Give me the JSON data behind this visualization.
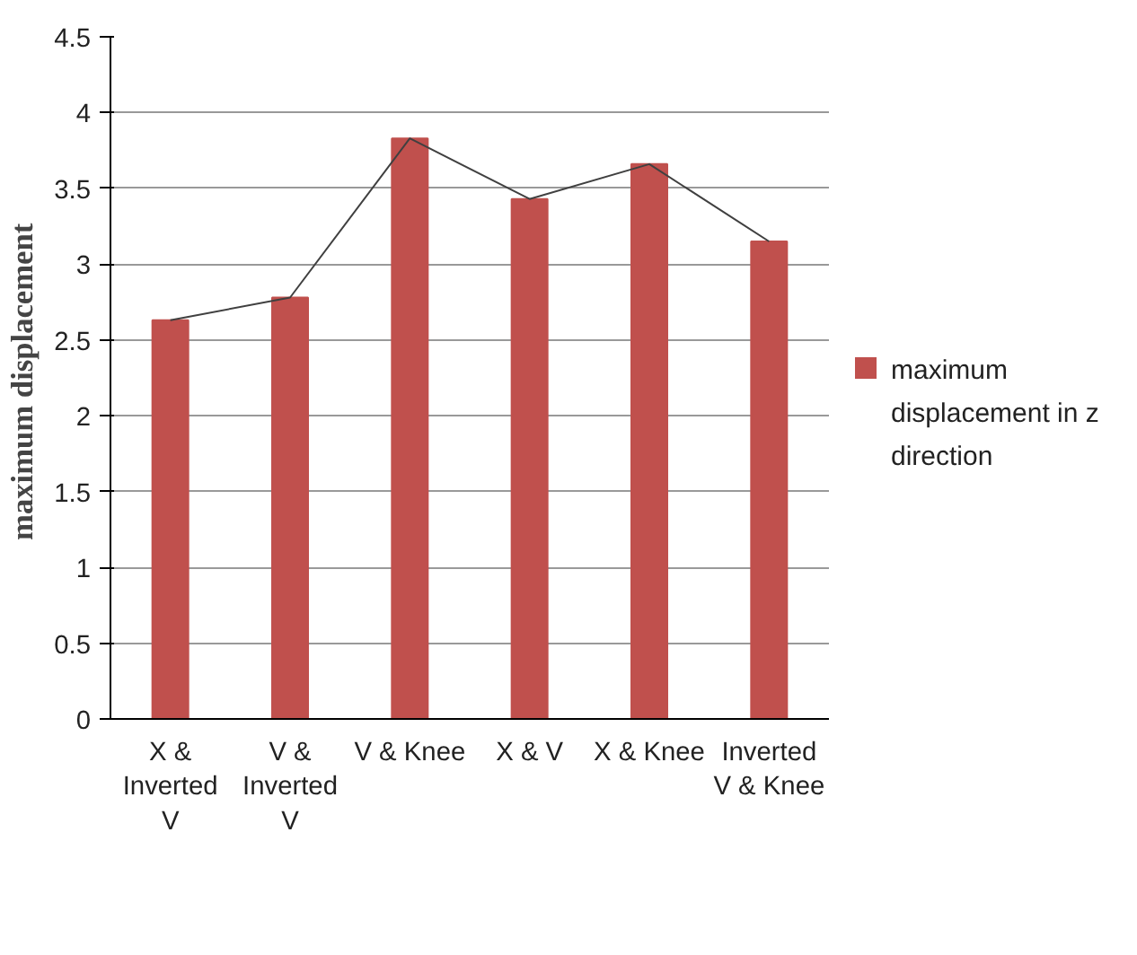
{
  "chart_data": {
    "type": "bar",
    "ylabel": "maximum  displacement",
    "categories": [
      "X & Inverted V",
      "V & Inverted V",
      "V & Knee",
      "X & V",
      "X & Knee",
      "Inverted V & Knee"
    ],
    "series": [
      {
        "name": "maximum displacement in z direction",
        "color": "#c0504d",
        "values": [
          2.63,
          2.78,
          3.83,
          3.43,
          3.66,
          3.15
        ]
      },
      {
        "type": "line",
        "color": "#404040",
        "values": [
          2.63,
          2.78,
          3.83,
          3.43,
          3.66,
          3.15
        ]
      }
    ],
    "ylim": [
      0,
      4.5
    ],
    "yticks": [
      0,
      0.5,
      1,
      1.5,
      2,
      2.5,
      3,
      3.5,
      4,
      4.5
    ],
    "grid": "y",
    "legend": "right"
  }
}
